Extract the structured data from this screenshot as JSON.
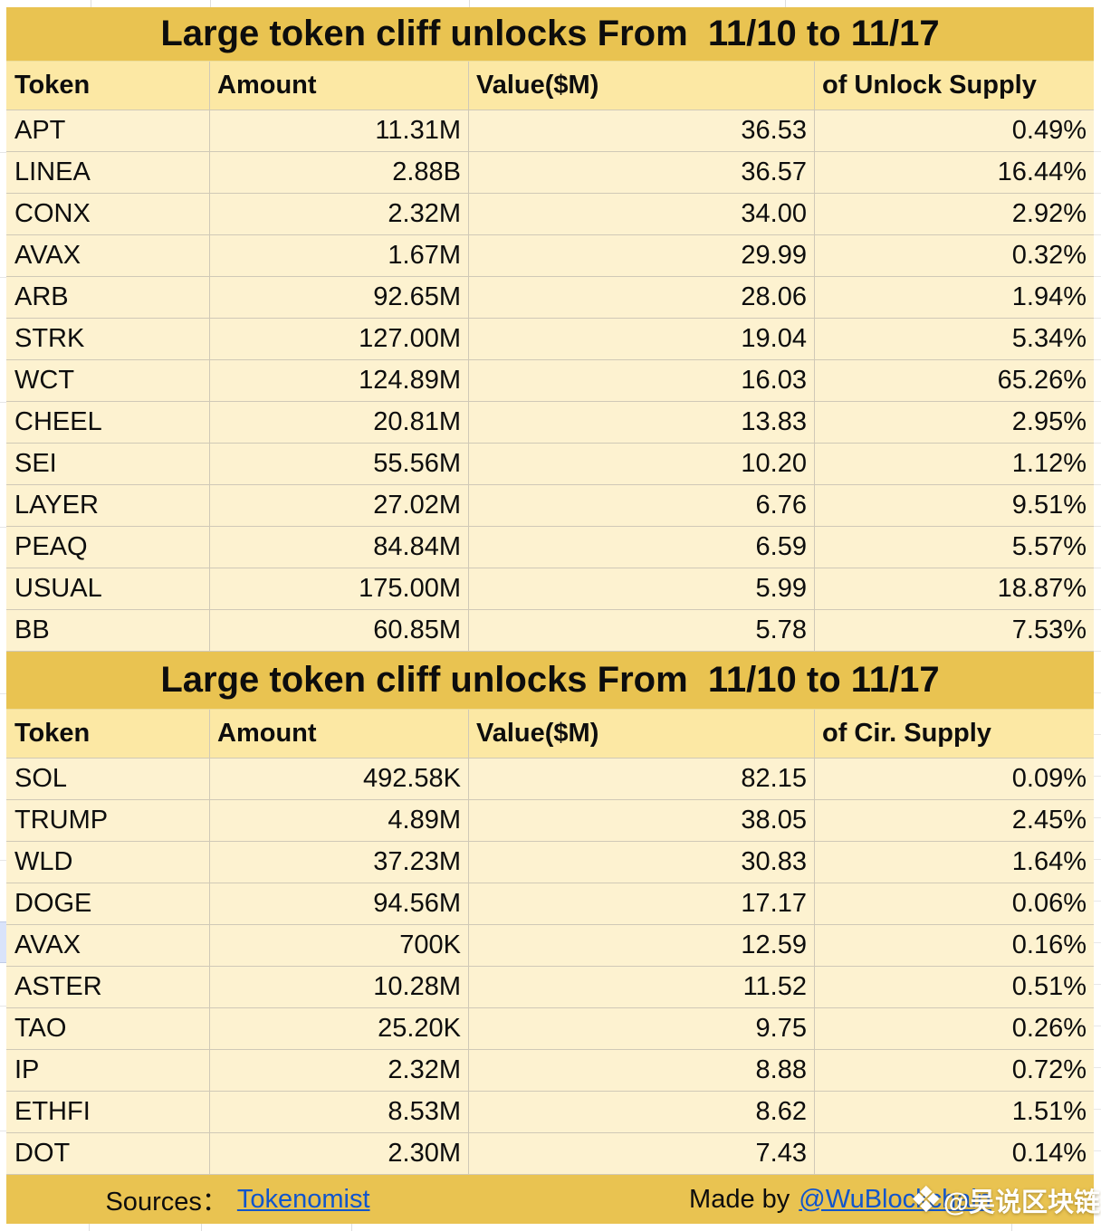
{
  "colors": {
    "gold": "#e9c351",
    "header_bg": "#fce8a4",
    "row_bg": "#fdf2d0",
    "grid_warm": "#d0c9b7",
    "grid_gray": "#dedede",
    "link": "#1155cc",
    "text": "#0d0d0d",
    "selected_cell_blue": "#d9e3fa"
  },
  "tables": [
    {
      "title": "Large token cliff unlocks From  11/10 to 11/17",
      "columns": [
        "Token",
        "Amount",
        "Value($M)",
        "of Unlock Supply"
      ],
      "rows": [
        [
          "APT",
          "11.31M",
          "36.53",
          "0.49%"
        ],
        [
          "LINEA",
          "2.88B",
          "36.57",
          "16.44%"
        ],
        [
          "CONX",
          "2.32M",
          "34.00",
          "2.92%"
        ],
        [
          "AVAX",
          "1.67M",
          "29.99",
          "0.32%"
        ],
        [
          "ARB",
          "92.65M",
          "28.06",
          "1.94%"
        ],
        [
          "STRK",
          "127.00M",
          "19.04",
          "5.34%"
        ],
        [
          "WCT",
          "124.89M",
          "16.03",
          "65.26%"
        ],
        [
          "CHEEL",
          "20.81M",
          "13.83",
          "2.95%"
        ],
        [
          "SEI",
          "55.56M",
          "10.20",
          "1.12%"
        ],
        [
          "LAYER",
          "27.02M",
          "6.76",
          "9.51%"
        ],
        [
          "PEAQ",
          "84.84M",
          "6.59",
          "5.57%"
        ],
        [
          "USUAL",
          "175.00M",
          "5.99",
          "18.87%"
        ],
        [
          "BB",
          "60.85M",
          "5.78",
          "7.53%"
        ]
      ]
    },
    {
      "title": "Large token cliff unlocks From  11/10 to 11/17",
      "columns": [
        "Token",
        "Amount",
        "Value($M)",
        "of Cir. Supply"
      ],
      "rows": [
        [
          "SOL",
          "492.58K",
          "82.15",
          "0.09%"
        ],
        [
          "TRUMP",
          "4.89M",
          "38.05",
          "2.45%"
        ],
        [
          "WLD",
          "37.23M",
          "30.83",
          "1.64%"
        ],
        [
          "DOGE",
          "94.56M",
          "17.17",
          "0.06%"
        ],
        [
          "AVAX",
          "700K",
          "12.59",
          "0.16%"
        ],
        [
          "ASTER",
          "10.28M",
          "11.52",
          "0.51%"
        ],
        [
          "TAO",
          "25.20K",
          "9.75",
          "0.26%"
        ],
        [
          "IP",
          "2.32M",
          "8.88",
          "0.72%"
        ],
        [
          "ETHFI",
          "8.53M",
          "8.62",
          "1.51%"
        ],
        [
          "DOT",
          "2.30M",
          "7.43",
          "0.14%"
        ]
      ]
    }
  ],
  "footer": {
    "sources_label": "Sources：",
    "sources_link": "Tokenomist",
    "made_by_label": "Made by",
    "made_by_link": "@WuBlockchain"
  },
  "watermark": {
    "logo_icon": "diamond-logo",
    "logo_glyph": "❖",
    "text": "@吴说区块链"
  }
}
